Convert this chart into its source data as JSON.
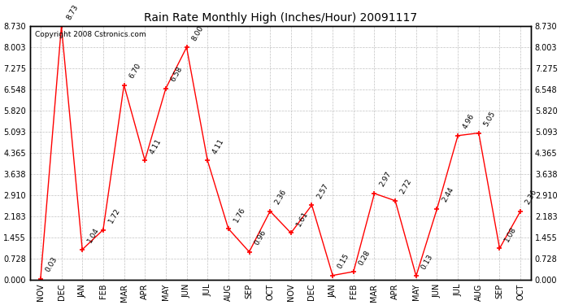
{
  "title": "Rain Rate Monthly High (Inches/Hour) 20091117",
  "copyright": "Copyright 2008 Cstronics.com",
  "x_labels": [
    "NOV",
    "DEC",
    "JAN",
    "FEB",
    "MAR",
    "APR",
    "MAY",
    "JUN",
    "JUL",
    "AUG",
    "SEP",
    "OCT",
    "NOV",
    "DEC",
    "JAN",
    "FEB",
    "MAR",
    "APR",
    "MAY",
    "JUN",
    "JUL",
    "AUG",
    "SEP",
    "OCT"
  ],
  "y_values": [
    0.03,
    8.73,
    1.04,
    1.72,
    6.7,
    4.11,
    6.58,
    8.0,
    4.11,
    1.76,
    0.96,
    2.36,
    1.61,
    2.57,
    0.15,
    0.28,
    2.97,
    2.72,
    0.13,
    2.44,
    4.96,
    5.05,
    1.08,
    2.36
  ],
  "y_labels": [
    0.0,
    0.728,
    1.455,
    2.183,
    2.91,
    3.638,
    4.365,
    5.093,
    5.82,
    6.548,
    7.275,
    8.003,
    8.73
  ],
  "line_color": "#FF0000",
  "marker_color": "#FF0000",
  "bg_color": "#FFFFFF",
  "grid_color": "#BBBBBB",
  "title_fontsize": 10,
  "label_fontsize": 7,
  "data_label_fontsize": 6.5,
  "copyright_fontsize": 6.5
}
